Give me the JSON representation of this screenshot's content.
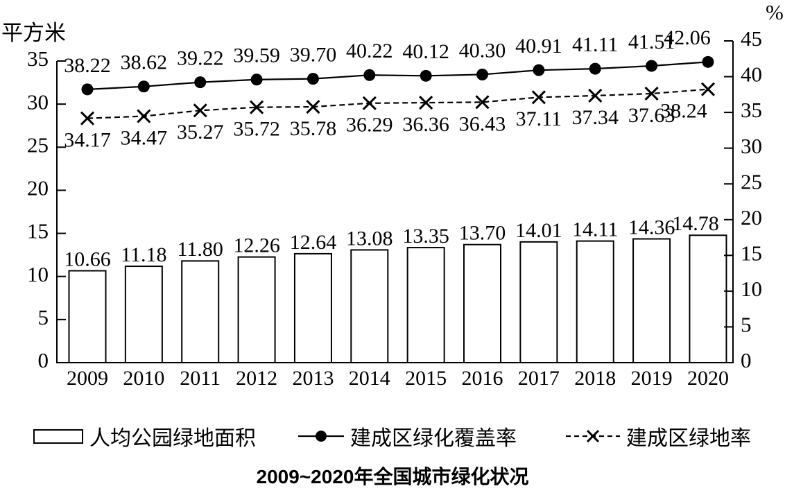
{
  "chart_data": {
    "type": "combo",
    "title": "2009~2020年全国城市绿化状况",
    "categories": [
      "2009",
      "2010",
      "2011",
      "2012",
      "2013",
      "2014",
      "2015",
      "2016",
      "2017",
      "2018",
      "2019",
      "2020"
    ],
    "series": [
      {
        "name": "人均公园绿地面积",
        "type": "bar",
        "axis": "left",
        "marker": "none",
        "values": [
          10.66,
          11.18,
          11.8,
          12.26,
          12.64,
          13.08,
          13.35,
          13.7,
          14.01,
          14.11,
          14.36,
          14.78
        ]
      },
      {
        "name": "建成区绿化覆盖率",
        "type": "line",
        "axis": "right",
        "style": "solid",
        "marker": "dot",
        "values": [
          38.22,
          38.62,
          39.22,
          39.59,
          39.7,
          40.22,
          40.12,
          40.3,
          40.91,
          41.11,
          41.51,
          42.06
        ]
      },
      {
        "name": "建成区绿地率",
        "type": "line",
        "axis": "right",
        "style": "dashed",
        "marker": "x",
        "values": [
          34.17,
          34.47,
          35.27,
          35.72,
          35.78,
          36.29,
          36.36,
          36.43,
          37.11,
          37.34,
          37.63,
          38.24
        ]
      }
    ],
    "left_axis": {
      "label": "平方米",
      "range": [
        0,
        35
      ],
      "tick_step": 5,
      "ticks": [
        0,
        5,
        10,
        15,
        20,
        25,
        30,
        35
      ]
    },
    "right_axis": {
      "label": "%",
      "range": [
        0,
        45
      ],
      "tick_step": 5,
      "ticks": [
        0,
        5,
        10,
        15,
        20,
        25,
        30,
        35,
        40,
        45
      ]
    },
    "legend_position": "bottom",
    "grid": "off",
    "colors": {
      "foreground": "#000000",
      "background": "#ffffff"
    }
  }
}
